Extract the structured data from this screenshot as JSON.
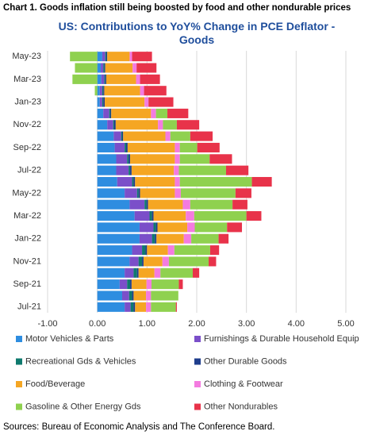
{
  "header": {
    "title": "Chart 1. Goods inflation still being boosted by food and other nondurable prices"
  },
  "chart_data": {
    "type": "bar",
    "orientation": "horizontal",
    "stacked": true,
    "title": "US: Contributions to YoY% Change in PCE Deflator - Goods",
    "categories": [
      "Jul-21",
      null,
      "Sep-21",
      null,
      "Nov-21",
      null,
      "Jan-22",
      null,
      "Mar-22",
      null,
      "May-22",
      null,
      "Jul-22",
      null,
      "Sep-22",
      null,
      "Nov-22",
      null,
      "Jan-23",
      null,
      "Mar-23",
      null,
      "May-23"
    ],
    "series": [
      {
        "name": "Motor Vehicles & Parts",
        "color": "#2e8de0",
        "values": [
          0.55,
          0.5,
          0.45,
          0.55,
          0.65,
          0.7,
          0.85,
          0.85,
          0.75,
          0.65,
          0.55,
          0.4,
          0.38,
          0.38,
          0.35,
          0.33,
          0.2,
          0.12,
          0.05,
          0.05,
          0.08,
          0.07,
          0.1
        ]
      },
      {
        "name": "Furnishings & Durable Household Equip",
        "color": "#7b4fc9",
        "values": [
          0.12,
          0.14,
          0.15,
          0.18,
          0.18,
          0.2,
          0.25,
          0.28,
          0.3,
          0.3,
          0.25,
          0.3,
          0.25,
          0.22,
          0.2,
          0.15,
          0.12,
          0.12,
          0.05,
          0.05,
          0.06,
          0.05,
          0.06
        ]
      },
      {
        "name": "Recreational Gds & Vehicles",
        "color": "#0f7a6e",
        "values": [
          0.06,
          0.06,
          0.06,
          0.07,
          0.07,
          0.07,
          0.06,
          0.05,
          0.05,
          0.04,
          0.03,
          0.03,
          0.03,
          0.03,
          0.03,
          0.02,
          0.02,
          0.02,
          0.02,
          0.02,
          0.02,
          0.02,
          0.02
        ]
      },
      {
        "name": "Other Durable Goods",
        "color": "#1f3d8c",
        "values": [
          0.03,
          0.03,
          0.03,
          0.03,
          0.03,
          0.03,
          0.03,
          0.03,
          0.03,
          0.03,
          0.03,
          0.03,
          0.03,
          0.03,
          0.03,
          0.02,
          0.03,
          0.02,
          0.03,
          0.02,
          0.02,
          0.02,
          0.02
        ]
      },
      {
        "name": "Food/Beverage",
        "color": "#f5a623",
        "values": [
          0.22,
          0.25,
          0.3,
          0.32,
          0.38,
          0.42,
          0.55,
          0.6,
          0.65,
          0.7,
          0.7,
          0.8,
          0.85,
          0.9,
          0.95,
          0.85,
          0.85,
          0.8,
          0.8,
          0.72,
          0.6,
          0.55,
          0.45
        ]
      },
      {
        "name": "Clothing & Footwear",
        "color": "#f47be0",
        "values": [
          0.1,
          0.1,
          0.1,
          0.12,
          0.13,
          0.13,
          0.15,
          0.15,
          0.17,
          0.15,
          0.12,
          0.1,
          0.1,
          0.1,
          0.1,
          0.1,
          0.1,
          0.1,
          0.08,
          0.08,
          0.08,
          0.08,
          0.05
        ]
      },
      {
        "name": "Gasoline & Other Energy Gds",
        "color": "#8fd14f",
        "values": [
          0.5,
          0.55,
          0.55,
          0.65,
          0.8,
          0.72,
          0.55,
          0.65,
          1.05,
          0.85,
          1.1,
          1.45,
          0.95,
          0.6,
          0.35,
          0.4,
          0.28,
          0.23,
          0.0,
          -0.05,
          -0.5,
          -0.45,
          -0.55
        ]
      },
      {
        "name": "Other Nondurables",
        "color": "#e8334a",
        "values": [
          0.02,
          0.0,
          0.08,
          0.13,
          0.15,
          0.18,
          0.2,
          0.3,
          0.3,
          0.3,
          0.32,
          0.4,
          0.45,
          0.45,
          0.45,
          0.45,
          0.45,
          0.42,
          0.5,
          0.45,
          0.4,
          0.4,
          0.4
        ]
      }
    ],
    "xlim": [
      -1,
      5
    ],
    "xticks": [
      {
        "value": -1,
        "label": "-1.00"
      },
      {
        "value": 0,
        "label": "0.00"
      },
      {
        "value": 1,
        "label": "1.00"
      },
      {
        "value": 2,
        "label": "2.00"
      },
      {
        "value": 3,
        "label": "3.00"
      },
      {
        "value": 4,
        "label": "4.00"
      },
      {
        "value": 5,
        "label": "5.00"
      }
    ],
    "grid": true
  },
  "footer": {
    "source": "Sources: Bureau of Economic Analysis and The Conference Board."
  }
}
